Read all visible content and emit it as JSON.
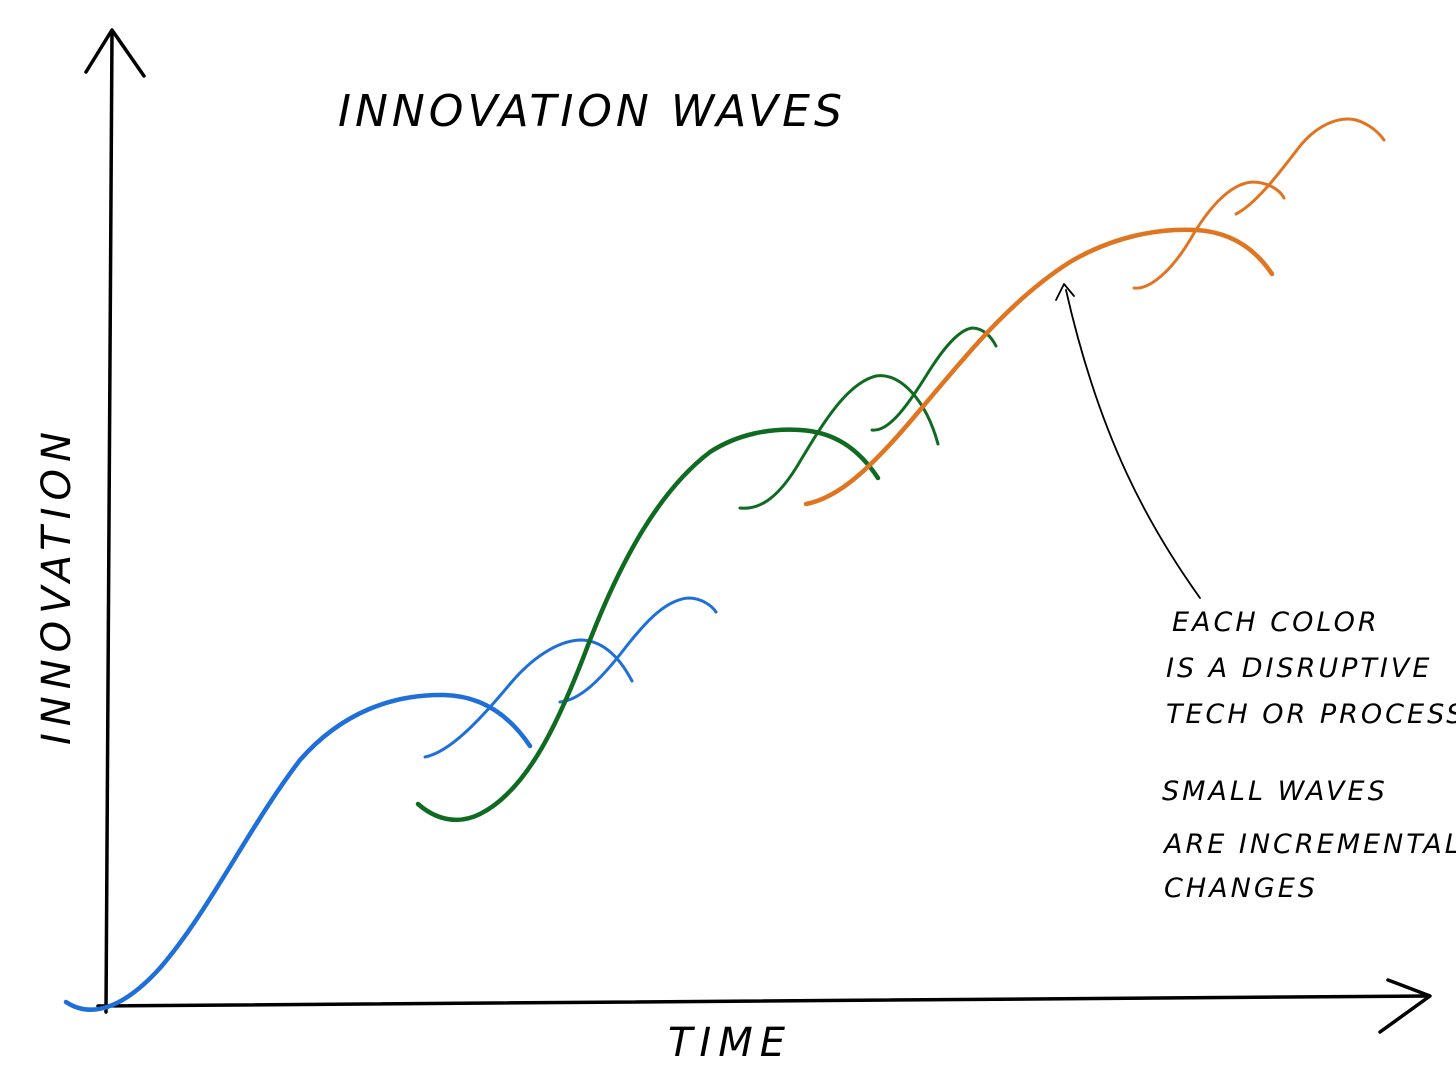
{
  "title": "INNOVATION WAVES",
  "axes": {
    "x_label": "TIME",
    "y_label": "INNOVATION"
  },
  "annotation": {
    "lines": [
      "EACH COLOR",
      "IS A DISRUPTIVE",
      "TECH OR PROCESS"
    ]
  },
  "note": {
    "lines": [
      "SMALL WAVES",
      "ARE INCREMENTAL",
      "CHANGES"
    ]
  },
  "colors": {
    "wave_blue": "#1e6fd9",
    "wave_green": "#0e6b21",
    "wave_orange": "#e07521",
    "ink": "#000000"
  }
}
